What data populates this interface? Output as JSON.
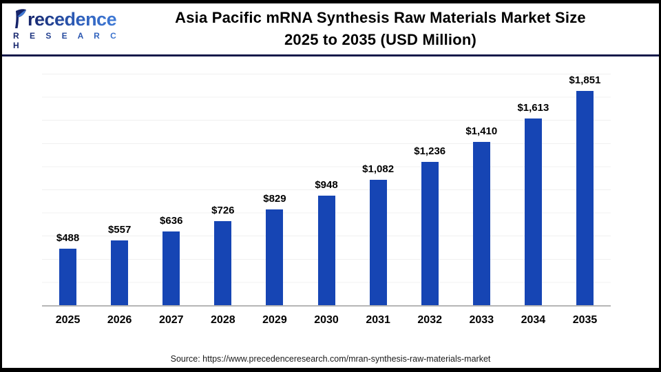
{
  "logo": {
    "brand": "recedence",
    "brand_full": "Precedence",
    "subbrand": "R E S E A R C H"
  },
  "header": {
    "title_line1": "Asia Pacific mRNA Synthesis Raw Materials Market Size",
    "title_line2": "2025 to 2035 (USD Million)"
  },
  "chart_data": {
    "type": "bar",
    "title": "Asia Pacific mRNA Synthesis Raw Materials Market Size 2025 to 2035 (USD Million)",
    "categories": [
      "2025",
      "2026",
      "2027",
      "2028",
      "2029",
      "2030",
      "2031",
      "2032",
      "2033",
      "2034",
      "2035"
    ],
    "values": [
      488,
      557,
      636,
      726,
      829,
      948,
      1082,
      1236,
      1410,
      1613,
      1851
    ],
    "value_labels": [
      "$488",
      "$557",
      "$636",
      "$726",
      "$829",
      "$948",
      "$1,082",
      "$1,236",
      "$1,410",
      "$1,613",
      "$1,851"
    ],
    "unit": "USD Million",
    "xlabel": "",
    "ylabel": "",
    "ylim": [
      0,
      2000
    ],
    "gridlines": "horizontal every 200, faint gray, y-axis ticks not labeled",
    "legend": "none",
    "bar_color": "#1645b4"
  },
  "footer": {
    "source": "Source: https://www.precedenceresearch.com/mran-synthesis-raw-materials-market"
  },
  "colors": {
    "bar": "#1645b4",
    "header_separator": "#141a4a",
    "axis_line": "#b5b5b5",
    "gridline": "#f0f0f0",
    "logo_navy": "#16246a",
    "logo_blue": "#3f7ad6"
  }
}
